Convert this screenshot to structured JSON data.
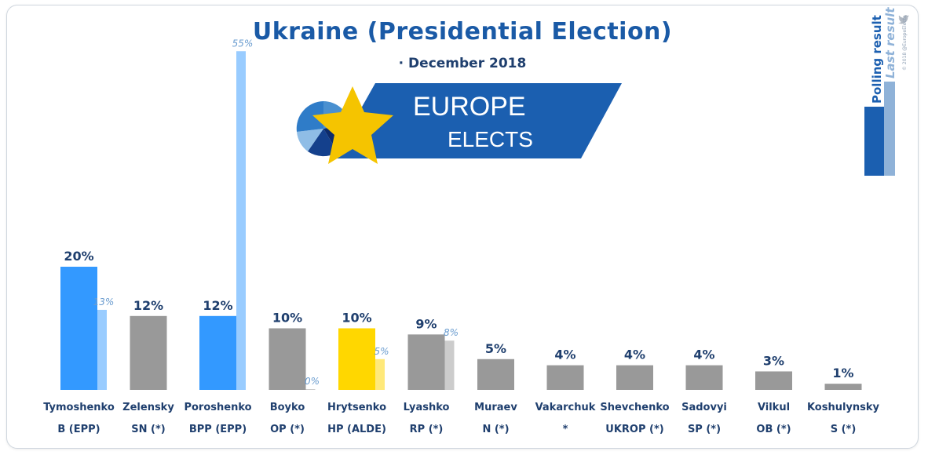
{
  "header": {
    "title": "Ukraine (Presidential Election)",
    "subtitle": "· December 2018"
  },
  "logo": {
    "line1": "EUROPE",
    "line2": "ELECTS"
  },
  "legend": {
    "polling": "Polling result",
    "last": "Last result",
    "credit": "© 2018 @EuropeElects"
  },
  "colors": {
    "blue": "#3399ff",
    "blue_light": "#99ccff",
    "grey": "#999999",
    "grey_light": "#cccccc",
    "yellow": "#ffd700",
    "yellow_light": "#ffe97a",
    "label": "#1f3f6e",
    "last_label": "#6a9ccf"
  },
  "chart_data": {
    "type": "bar",
    "categories": [
      "Tymoshenko",
      "Zelensky",
      "Poroshenko",
      "Boyko",
      "Hrytsenko",
      "Lyashko",
      "Muraev",
      "Vakarchuk",
      "Shevchenko",
      "Sadovyi",
      "Vilkul",
      "Koshulynsky"
    ],
    "parties": [
      "B (EPP)",
      "SN (*)",
      "BPP (EPP)",
      "OP (*)",
      "HP (ALDE)",
      "RP (*)",
      "N (*)",
      "*",
      "UKROP (*)",
      "SP (*)",
      "OB (*)",
      "S (*)"
    ],
    "series": [
      {
        "name": "Polling result",
        "values": [
          20,
          12,
          12,
          10,
          10,
          9,
          5,
          4,
          4,
          4,
          3,
          1
        ]
      },
      {
        "name": "Last result",
        "values": [
          13,
          null,
          55,
          0,
          5,
          8,
          null,
          null,
          null,
          null,
          null,
          null
        ]
      }
    ],
    "value_labels": [
      "20%",
      "12%",
      "12%",
      "10%",
      "10%",
      "9%",
      "5%",
      "4%",
      "4%",
      "4%",
      "3%",
      "1%"
    ],
    "last_labels": [
      "13%",
      "",
      "55%",
      "0%",
      "5%",
      "8%",
      "",
      "",
      "",
      "",
      "",
      ""
    ],
    "bar_colors": [
      "blue",
      "grey",
      "blue",
      "grey",
      "yellow",
      "grey",
      "grey",
      "grey",
      "grey",
      "grey",
      "grey",
      "grey"
    ],
    "ylim": [
      0,
      55
    ]
  }
}
